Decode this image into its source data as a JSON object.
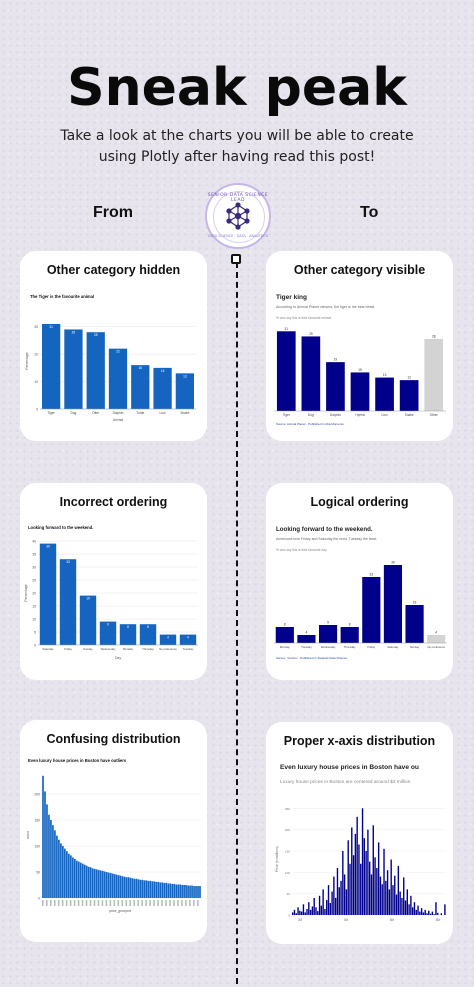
{
  "header": {
    "title": "Sneak peak",
    "subtitle": "Take a look at the charts you will be able to create using Plotly after having read this post!"
  },
  "columns": {
    "left": "From",
    "right": "To"
  },
  "logo": {
    "text_top": "SENIOR DATA SCIENCE LEAD",
    "text_bottom": "DATA SCIENCE · DATA · ANALYTICS"
  },
  "colors": {
    "bar_left": "#1565c0",
    "bar_right": "#00008b",
    "other_gray": "#d3d3d3",
    "card_bg": "#ffffff",
    "page_bg": "#e7e4ed"
  },
  "cards": [
    {
      "title": "Other category hidden",
      "chart_data": {
        "type": "bar",
        "title": "The Tiger is the favourite animal",
        "categories": [
          "Tiger",
          "Dog",
          "Otter",
          "Dolphin",
          "Turtle",
          "Lion",
          "Snake"
        ],
        "values": [
          31,
          29,
          28,
          22,
          16,
          15,
          13
        ],
        "ylim": [
          0,
          35
        ],
        "yticks": [
          0,
          10,
          20,
          30
        ],
        "xlabel": "Animal",
        "ylabel": "Percentage"
      }
    },
    {
      "title": "Other category visible",
      "chart_data": {
        "type": "bar",
        "title": "Tiger king",
        "subtitle": "According to Animal Planet viewers, the tiger is the best beast.",
        "note": "% who say this is their favourite animal",
        "source": "Source: Animal Planet · Published in Aha Moments",
        "categories": [
          "Tiger",
          "Dog",
          "Dolphin",
          "Hyena",
          "Lion",
          "Snake",
          "Other"
        ],
        "values": [
          31,
          29,
          19,
          15,
          13,
          12,
          28
        ],
        "highlight": [
          false,
          false,
          false,
          false,
          false,
          false,
          true
        ],
        "ylim": [
          0,
          35
        ]
      }
    },
    {
      "title": "Incorrect ordering",
      "chart_data": {
        "type": "bar",
        "title": "Looking forward to the weekend.",
        "categories": [
          "Saturday",
          "Friday",
          "Sunday",
          "Wednesday",
          "Monday",
          "Thursday",
          "No preference",
          "Tuesday"
        ],
        "values": [
          39,
          33,
          19,
          9,
          8,
          8,
          4,
          4
        ],
        "ylim": [
          0,
          40
        ],
        "yticks": [
          0,
          5,
          10,
          15,
          20,
          25,
          30,
          35,
          40
        ],
        "xlabel": "Day",
        "ylabel": "Percentage"
      }
    },
    {
      "title": "Logical ordering",
      "chart_data": {
        "type": "bar",
        "title": "Looking forward to the weekend.",
        "subtitle": "Americans love Friday and Saturday the most. Tuesday the least.",
        "note": "% who say this is their favourite day",
        "source": "Survey: YouGov · Published in Towards Data Science",
        "categories": [
          "Monday",
          "Tuesday",
          "Wednesday",
          "Thursday",
          "Friday",
          "Saturday",
          "Sunday",
          "No preference"
        ],
        "values": [
          8,
          4,
          9,
          8,
          33,
          39,
          19,
          4
        ],
        "highlight": [
          false,
          false,
          false,
          false,
          false,
          false,
          false,
          true
        ],
        "ylim": [
          0,
          45
        ]
      }
    },
    {
      "title": "Confusing distribution",
      "chart_data": {
        "type": "bar",
        "title": "Even luxury house prices in Boston have outliers",
        "values": [
          235,
          205,
          180,
          160,
          150,
          140,
          130,
          120,
          112,
          105,
          100,
          95,
          90,
          85,
          82,
          78,
          75,
          72,
          70,
          68,
          66,
          64,
          62,
          60,
          59,
          57,
          56,
          55,
          54,
          53,
          52,
          51,
          50,
          49,
          48,
          47,
          46,
          45,
          44,
          43,
          42,
          41,
          40,
          40,
          39,
          38,
          37,
          37,
          36,
          35,
          35,
          34,
          34,
          33,
          33,
          32,
          32,
          31,
          31,
          30,
          30,
          29,
          29,
          28,
          28,
          27,
          27,
          26,
          26,
          26,
          25,
          25,
          25,
          24,
          24,
          24,
          23,
          23,
          23,
          23
        ],
        "ylim": [
          0,
          250
        ],
        "yticks": [
          0,
          50,
          100,
          150,
          200
        ],
        "xlabel": "price_grouped",
        "ylabel": "count"
      }
    },
    {
      "title": "Proper x-axis distribution",
      "chart_data": {
        "type": "histogram",
        "title": "Even luxury house prices in Boston have ou",
        "subtitle": "Luxury house prices in Boston are centered around $3 million",
        "ylabel": "Price (in millions)",
        "xticks": [
          "2M",
          "4M",
          "6M",
          "8M"
        ],
        "values": [
          6,
          12,
          4,
          18,
          10,
          8,
          25,
          6,
          14,
          30,
          12,
          20,
          40,
          18,
          9,
          45,
          22,
          60,
          14,
          35,
          70,
          28,
          55,
          90,
          40,
          110,
          65,
          80,
          150,
          95,
          60,
          175,
          120,
          205,
          140,
          190,
          230,
          165,
          120,
          250,
          180,
          150,
          200,
          125,
          95,
          210,
          135,
          110,
          170,
          90,
          72,
          155,
          80,
          105,
          60,
          130,
          70,
          92,
          48,
          115,
          55,
          40,
          88,
          34,
          60,
          25,
          45,
          18,
          30,
          12,
          22,
          8,
          16,
          6,
          12,
          4,
          10,
          3,
          8,
          2,
          30,
          5,
          0,
          4,
          0,
          25
        ]
      }
    }
  ]
}
